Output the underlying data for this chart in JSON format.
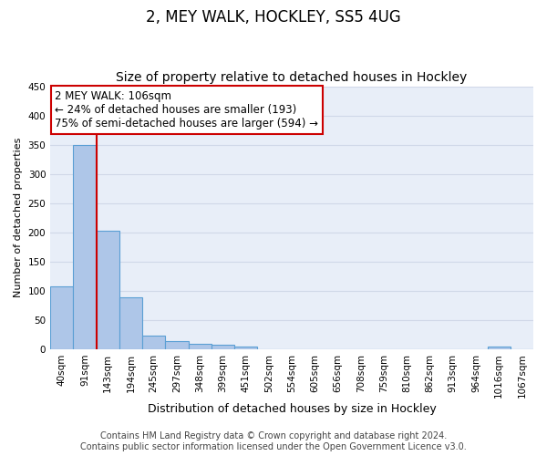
{
  "title": "2, MEY WALK, HOCKLEY, SS5 4UG",
  "subtitle": "Size of property relative to detached houses in Hockley",
  "xlabel": "Distribution of detached houses by size in Hockley",
  "ylabel": "Number of detached properties",
  "categories": [
    "40sqm",
    "91sqm",
    "143sqm",
    "194sqm",
    "245sqm",
    "297sqm",
    "348sqm",
    "399sqm",
    "451sqm",
    "502sqm",
    "554sqm",
    "605sqm",
    "656sqm",
    "708sqm",
    "759sqm",
    "810sqm",
    "862sqm",
    "913sqm",
    "964sqm",
    "1016sqm",
    "1067sqm"
  ],
  "values": [
    108,
    350,
    203,
    89,
    23,
    14,
    9,
    8,
    5,
    0,
    0,
    0,
    0,
    0,
    0,
    0,
    0,
    0,
    0,
    5,
    0
  ],
  "bar_color": "#aec6e8",
  "bar_edgecolor": "#5a9fd4",
  "vline_x": 1.5,
  "annotation_line1": "2 MEY WALK: 106sqm",
  "annotation_line2": "← 24% of detached houses are smaller (193)",
  "annotation_line3": "75% of semi-detached houses are larger (594) →",
  "annotation_box_facecolor": "#ffffff",
  "annotation_box_edgecolor": "#cc0000",
  "vline_color": "#cc0000",
  "ylim": [
    0,
    450
  ],
  "yticks": [
    0,
    50,
    100,
    150,
    200,
    250,
    300,
    350,
    400,
    450
  ],
  "background_color": "#e8eef8",
  "grid_color": "#d0d8e8",
  "footer_line1": "Contains HM Land Registry data © Crown copyright and database right 2024.",
  "footer_line2": "Contains public sector information licensed under the Open Government Licence v3.0.",
  "title_fontsize": 12,
  "subtitle_fontsize": 10,
  "xlabel_fontsize": 9,
  "ylabel_fontsize": 8,
  "tick_fontsize": 7.5,
  "annotation_fontsize": 8.5,
  "footer_fontsize": 7
}
